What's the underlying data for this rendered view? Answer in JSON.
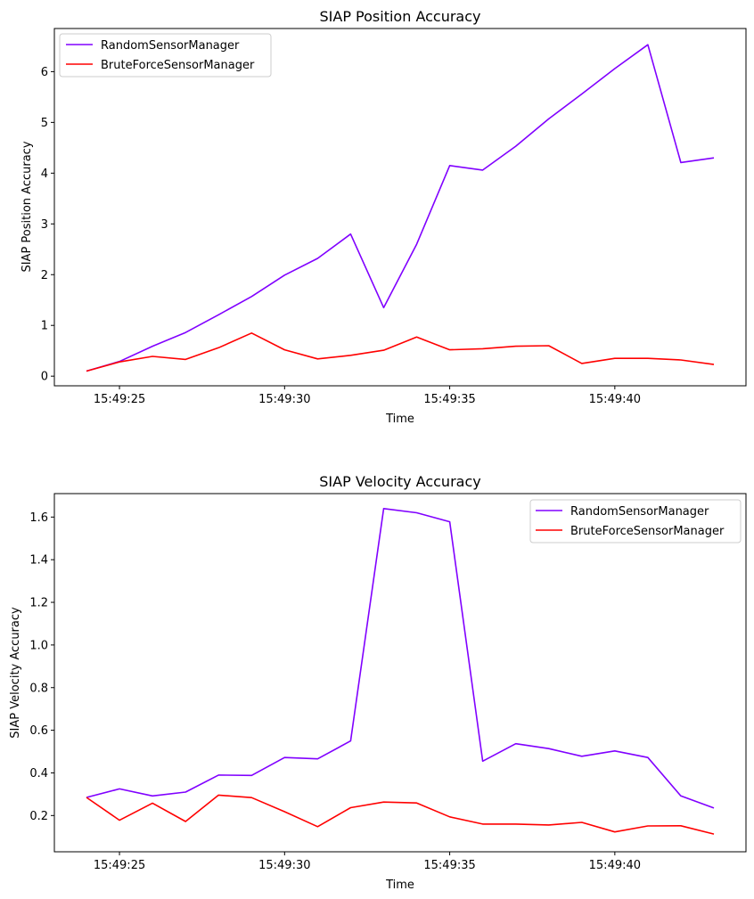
{
  "chart_data": [
    {
      "type": "line",
      "title": "SIAP Position Accuracy",
      "xlabel": "Time",
      "ylabel": "SIAP Position Accuracy",
      "x": [
        "15:49:24",
        "15:49:25",
        "15:49:26",
        "15:49:27",
        "15:49:28",
        "15:49:29",
        "15:49:30",
        "15:49:31",
        "15:49:32",
        "15:49:33",
        "15:49:34",
        "15:49:35",
        "15:49:36",
        "15:49:37",
        "15:49:38",
        "15:49:39",
        "15:49:40",
        "15:49:41",
        "15:49:42",
        "15:49:43"
      ],
      "xticks": [
        "15:49:25",
        "15:49:30",
        "15:49:35",
        "15:49:40"
      ],
      "yticks": [
        "0",
        "1",
        "2",
        "3",
        "4",
        "5",
        "6"
      ],
      "ylim": [
        -0.19,
        6.85
      ],
      "legend_position": "upper left",
      "grid": false,
      "series": [
        {
          "name": "RandomSensorManager",
          "color": "#8000ff",
          "values": [
            0.1,
            0.29,
            0.59,
            0.86,
            1.21,
            1.57,
            1.99,
            2.32,
            2.8,
            1.35,
            2.6,
            4.15,
            4.06,
            4.53,
            5.07,
            5.56,
            6.06,
            6.53,
            4.21,
            4.3
          ]
        },
        {
          "name": "BruteForceSensorManager",
          "color": "#ff0000",
          "values": [
            0.1,
            0.28,
            0.39,
            0.33,
            0.56,
            0.85,
            0.52,
            0.34,
            0.41,
            0.51,
            0.77,
            0.52,
            0.54,
            0.59,
            0.6,
            0.25,
            0.35,
            0.35,
            0.32,
            0.23
          ]
        }
      ]
    },
    {
      "type": "line",
      "title": "SIAP Velocity Accuracy",
      "xlabel": "Time",
      "ylabel": "SIAP Velocity Accuracy",
      "x": [
        "15:49:24",
        "15:49:25",
        "15:49:26",
        "15:49:27",
        "15:49:28",
        "15:49:29",
        "15:49:30",
        "15:49:31",
        "15:49:32",
        "15:49:33",
        "15:49:34",
        "15:49:35",
        "15:49:36",
        "15:49:37",
        "15:49:38",
        "15:49:39",
        "15:49:40",
        "15:49:41",
        "15:49:42",
        "15:49:43"
      ],
      "xticks": [
        "15:49:25",
        "15:49:30",
        "15:49:35",
        "15:49:40"
      ],
      "yticks": [
        "0.2",
        "0.4",
        "0.6",
        "0.8",
        "1.0",
        "1.2",
        "1.4",
        "1.6"
      ],
      "ylim": [
        0.03,
        1.71
      ],
      "legend_position": "upper right",
      "grid": false,
      "series": [
        {
          "name": "RandomSensorManager",
          "color": "#8000ff",
          "values": [
            0.285,
            0.325,
            0.292,
            0.31,
            0.39,
            0.388,
            0.472,
            0.466,
            0.55,
            1.64,
            1.62,
            1.578,
            0.455,
            0.537,
            0.514,
            0.478,
            0.503,
            0.472,
            0.292,
            0.235
          ]
        },
        {
          "name": "BruteForceSensorManager",
          "color": "#ff0000",
          "values": [
            0.285,
            0.178,
            0.258,
            0.172,
            0.296,
            0.284,
            0.218,
            0.148,
            0.237,
            0.263,
            0.259,
            0.194,
            0.16,
            0.16,
            0.156,
            0.168,
            0.123,
            0.151,
            0.152,
            0.113
          ]
        }
      ]
    }
  ]
}
